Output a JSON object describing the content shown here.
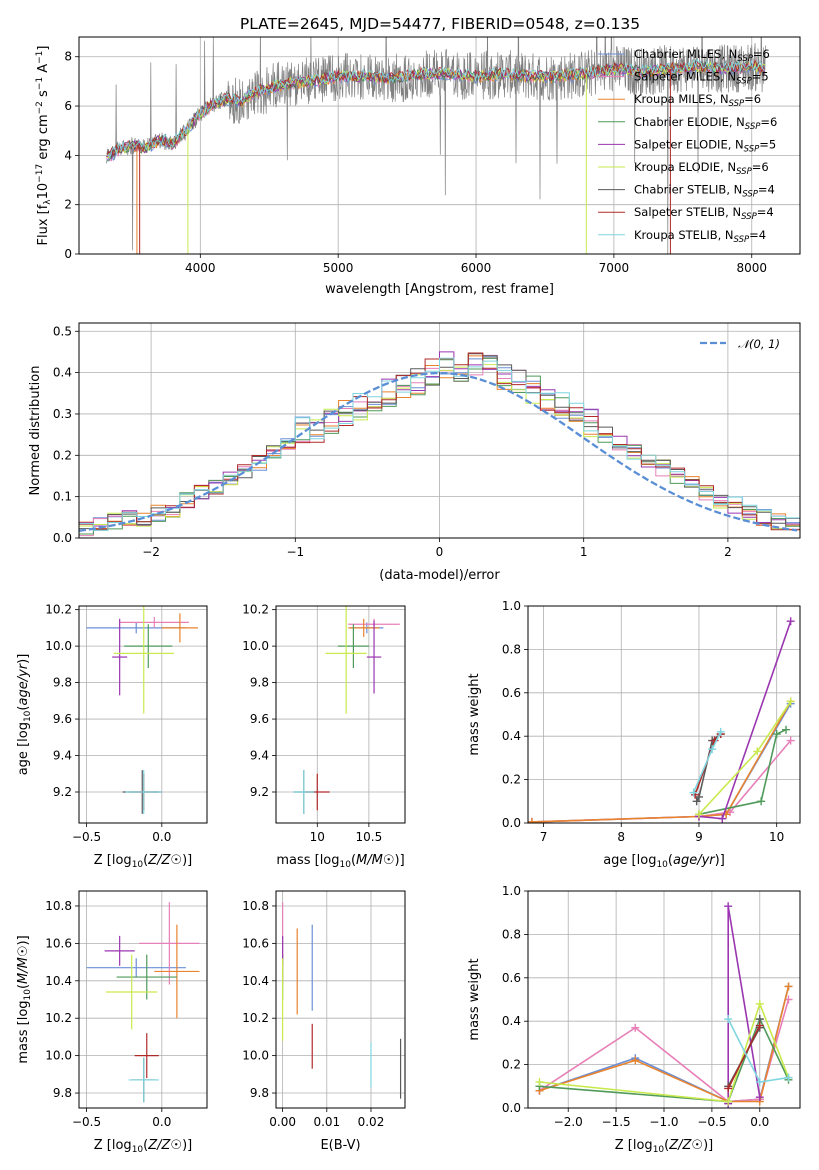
{
  "figure": {
    "title": "PLATE=2645, MJD=54477, FIBERID=0548, z=0.135"
  },
  "palette": {
    "Chabrier MILES": "#6b8fd6",
    "Salpeter MILES": "#e77fb8",
    "Kroupa MILES": "#e8832e",
    "Chabrier ELODIE": "#4f9a5a",
    "Salpeter ELODIE": "#9a36b0",
    "Kroupa ELODIE": "#c9ea4e",
    "Chabrier STELIB": "#5a5a5a",
    "Salpeter STELIB": "#b02a2a",
    "Kroupa STELIB": "#7fd6e0",
    "observed": "#808080",
    "gauss": "#5a8fd6",
    "grid": "#b0b0b0"
  },
  "chart_data": [
    {
      "id": "spectrum",
      "type": "line",
      "title": "PLATE=2645, MJD=54477, FIBERID=0548, z=0.135",
      "xlabel": "wavelength [Angstrom, rest frame]",
      "ylabel": "Flux [f_λ 10^-17 erg cm^-2 s^-1 A^-1]",
      "xlim": [
        3120,
        8350
      ],
      "ylim": [
        0,
        8.8
      ],
      "xticks": [
        4000,
        5000,
        6000,
        7000,
        8000
      ],
      "yticks": [
        0,
        2,
        4,
        6,
        8
      ],
      "legend_position": "upper-right",
      "legend": [
        {
          "name": "Chabrier MILES",
          "label": "Chabrier MILES, N",
          "sub": "SSP",
          "tail": "=6"
        },
        {
          "name": "Salpeter MILES",
          "label": "Salpeter MILES, N",
          "sub": "SSP",
          "tail": "=5"
        },
        {
          "name": "Kroupa MILES",
          "label": "Kroupa MILES, N",
          "sub": "SSP",
          "tail": "=6"
        },
        {
          "name": "Chabrier ELODIE",
          "label": "Chabrier ELODIE, N",
          "sub": "SSP",
          "tail": "=6"
        },
        {
          "name": "Salpeter ELODIE",
          "label": "Salpeter ELODIE, N",
          "sub": "SSP",
          "tail": "=5"
        },
        {
          "name": "Kroupa ELODIE",
          "label": "Kroupa ELODIE, N",
          "sub": "SSP",
          "tail": "=6"
        },
        {
          "name": "Chabrier STELIB",
          "label": "Chabrier STELIB, N",
          "sub": "SSP",
          "tail": "=4"
        },
        {
          "name": "Salpeter STELIB",
          "label": "Salpeter STELIB, N",
          "sub": "SSP",
          "tail": "=4"
        },
        {
          "name": "Kroupa STELIB",
          "label": "Kroupa STELIB, N",
          "sub": "SSP",
          "tail": "=4"
        }
      ],
      "continuum": [
        [
          3320,
          3.9
        ],
        [
          3400,
          4.2
        ],
        [
          3500,
          4.4
        ],
        [
          3600,
          4.3
        ],
        [
          3700,
          4.6
        ],
        [
          3800,
          4.5
        ],
        [
          3900,
          5.0
        ],
        [
          4000,
          5.7
        ],
        [
          4100,
          6.1
        ],
        [
          4200,
          6.3
        ],
        [
          4300,
          6.2
        ],
        [
          4400,
          6.6
        ],
        [
          4500,
          6.7
        ],
        [
          4600,
          6.9
        ],
        [
          4800,
          7.0
        ],
        [
          5000,
          7.2
        ],
        [
          5200,
          7.2
        ],
        [
          5400,
          7.1
        ],
        [
          5600,
          7.3
        ],
        [
          5800,
          7.3
        ],
        [
          6000,
          7.2
        ],
        [
          6200,
          7.3
        ],
        [
          6400,
          7.2
        ],
        [
          6600,
          7.2
        ],
        [
          6800,
          7.3
        ],
        [
          7000,
          7.5
        ],
        [
          7200,
          7.4
        ],
        [
          7400,
          7.5
        ],
        [
          7600,
          7.6
        ],
        [
          7800,
          7.5
        ],
        [
          8000,
          7.6
        ],
        [
          8100,
          7.5
        ]
      ],
      "model_dropouts": [
        {
          "name": "Salpeter STELIB",
          "wavelength": 3560
        },
        {
          "name": "Kroupa MILES",
          "wavelength": 3540
        },
        {
          "name": "Kroupa ELODIE",
          "wavelength": 3910
        },
        {
          "name": "Kroupa ELODIE",
          "wavelength": 6800
        },
        {
          "name": "Salpeter STELIB",
          "wavelength": 7410
        }
      ]
    },
    {
      "id": "residuals",
      "type": "histogram",
      "xlabel": "(data-model)/error",
      "ylabel": "Normed distribution",
      "xlim": [
        -2.5,
        2.5
      ],
      "ylim": [
        0,
        0.52
      ],
      "xticks": [
        -2,
        -1,
        0,
        1,
        2
      ],
      "yticks": [
        0.0,
        0.1,
        0.2,
        0.3,
        0.4,
        0.5
      ],
      "legend_position": "upper-right",
      "legend": [
        {
          "name": "gauss",
          "label": "𝒩(0, 1)"
        }
      ],
      "bins": [
        -2.5,
        -2.4,
        -2.3,
        -2.2,
        -2.1,
        -2.0,
        -1.9,
        -1.8,
        -1.7,
        -1.6,
        -1.5,
        -1.4,
        -1.3,
        -1.2,
        -1.1,
        -1.0,
        -0.9,
        -0.8,
        -0.7,
        -0.6,
        -0.5,
        -0.4,
        -0.3,
        -0.2,
        -0.1,
        0.0,
        0.1,
        0.2,
        0.3,
        0.4,
        0.5,
        0.6,
        0.7,
        0.8,
        0.9,
        1.0,
        1.1,
        1.2,
        1.3,
        1.4,
        1.5,
        1.6,
        1.7,
        1.8,
        1.9,
        2.0,
        2.1,
        2.2,
        2.3,
        2.4,
        2.5
      ],
      "hist_center": [
        0.02,
        0.03,
        0.04,
        0.05,
        0.04,
        0.06,
        0.07,
        0.09,
        0.11,
        0.12,
        0.14,
        0.16,
        0.18,
        0.21,
        0.23,
        0.26,
        0.26,
        0.28,
        0.3,
        0.32,
        0.33,
        0.35,
        0.36,
        0.38,
        0.4,
        0.42,
        0.41,
        0.42,
        0.41,
        0.39,
        0.38,
        0.36,
        0.34,
        0.32,
        0.3,
        0.28,
        0.25,
        0.23,
        0.21,
        0.19,
        0.17,
        0.15,
        0.13,
        0.11,
        0.09,
        0.08,
        0.06,
        0.05,
        0.04,
        0.03
      ]
    },
    {
      "id": "age-vs-Z",
      "type": "errorbar",
      "xlabel": "Z [log10(Z/Z☉)]",
      "ylabel": "age [log10(age/yr)]",
      "xlim": [
        -0.55,
        0.3
      ],
      "ylim": [
        9.03,
        10.22
      ],
      "xticks": [
        -0.5,
        -0.0
      ],
      "xticklabels": [
        "−0.5",
        "0.0"
      ],
      "yticks": [
        9.2,
        9.4,
        9.6,
        9.8,
        10.0,
        10.2
      ],
      "points": [
        {
          "name": "Chabrier MILES",
          "x": -0.17,
          "xerr": 0.33,
          "y": 10.1,
          "yerr": 0.03
        },
        {
          "name": "Salpeter MILES",
          "x": -0.05,
          "xerr": 0.23,
          "y": 10.13,
          "yerr": 0.03
        },
        {
          "name": "Kroupa MILES",
          "x": 0.12,
          "xerr": 0.12,
          "y": 10.1,
          "yerr": 0.08
        },
        {
          "name": "Chabrier ELODIE",
          "x": -0.09,
          "xerr": 0.16,
          "y": 10.0,
          "yerr": 0.12
        },
        {
          "name": "Salpeter ELODIE",
          "x": -0.28,
          "xerr": 0.05,
          "y": 9.94,
          "yerr": 0.21
        },
        {
          "name": "Kroupa ELODIE",
          "x": -0.12,
          "xerr": 0.2,
          "y": 9.96,
          "yerr": 0.33
        },
        {
          "name": "Chabrier STELIB",
          "x": -0.13,
          "xerr": 0.13,
          "y": 9.2,
          "yerr": 0.12
        },
        {
          "name": "Salpeter STELIB",
          "x": -0.12,
          "xerr": 0.1,
          "y": 9.2,
          "yerr": 0.1
        },
        {
          "name": "Kroupa STELIB",
          "x": -0.12,
          "xerr": 0.12,
          "y": 9.2,
          "yerr": 0.12
        }
      ]
    },
    {
      "id": "age-vs-mass",
      "type": "errorbar",
      "xlabel": "mass [log10(M/M☉)]",
      "ylabel": "",
      "xlim": [
        9.6,
        10.85
      ],
      "ylim": [
        9.03,
        10.22
      ],
      "xticks": [
        10.0,
        10.5
      ],
      "yticks": [
        9.2,
        9.4,
        9.6,
        9.8,
        10.0,
        10.2
      ],
      "points": [
        {
          "name": "Chabrier MILES",
          "x": 10.48,
          "xerr": 0.16,
          "y": 10.1,
          "yerr": 0.03
        },
        {
          "name": "Salpeter MILES",
          "x": 10.55,
          "xerr": 0.25,
          "y": 10.12,
          "yerr": 0.03
        },
        {
          "name": "Kroupa MILES",
          "x": 10.45,
          "xerr": 0.15,
          "y": 10.1,
          "yerr": 0.05
        },
        {
          "name": "Chabrier ELODIE",
          "x": 10.35,
          "xerr": 0.15,
          "y": 10.0,
          "yerr": 0.12
        },
        {
          "name": "Salpeter ELODIE",
          "x": 10.55,
          "xerr": 0.07,
          "y": 9.94,
          "yerr": 0.2
        },
        {
          "name": "Kroupa ELODIE",
          "x": 10.28,
          "xerr": 0.2,
          "y": 9.96,
          "yerr": 0.33
        },
        {
          "name": "Chabrier STELIB",
          "x": 9.87,
          "xerr": 0.1,
          "y": 9.2,
          "yerr": 0.12
        },
        {
          "name": "Salpeter STELIB",
          "x": 10.0,
          "xerr": 0.12,
          "y": 9.2,
          "yerr": 0.1
        },
        {
          "name": "Kroupa STELIB",
          "x": 9.87,
          "xerr": 0.1,
          "y": 9.2,
          "yerr": 0.12
        }
      ]
    },
    {
      "id": "massweight-vs-age",
      "type": "line",
      "xlabel": "age [log10(age/yr)]",
      "ylabel": "mass weight",
      "xlim": [
        6.8,
        10.3
      ],
      "ylim": [
        0,
        1.0
      ],
      "xticks": [
        7,
        8,
        9,
        10
      ],
      "yticks": [
        0.0,
        0.2,
        0.4,
        0.6,
        0.8,
        1.0
      ],
      "series": [
        {
          "name": "Chabrier MILES",
          "x": [
            6.85,
            9.0,
            9.35,
            10.18
          ],
          "y": [
            0.005,
            0.03,
            0.04,
            0.55
          ]
        },
        {
          "name": "Salpeter MILES",
          "x": [
            6.85,
            9.0,
            9.4,
            10.18
          ],
          "y": [
            0.005,
            0.03,
            0.05,
            0.38
          ]
        },
        {
          "name": "Kroupa MILES",
          "x": [
            6.85,
            9.0,
            9.35,
            10.18
          ],
          "y": [
            0.005,
            0.03,
            0.04,
            0.56
          ]
        },
        {
          "name": "Chabrier ELODIE",
          "x": [
            9.0,
            9.8,
            10.0,
            10.12
          ],
          "y": [
            0.04,
            0.1,
            0.41,
            0.43
          ]
        },
        {
          "name": "Salpeter ELODIE",
          "x": [
            9.0,
            9.3,
            10.18
          ],
          "y": [
            0.03,
            0.02,
            0.93
          ]
        },
        {
          "name": "Kroupa ELODIE",
          "x": [
            9.0,
            9.75,
            10.18
          ],
          "y": [
            0.04,
            0.33,
            0.56
          ]
        },
        {
          "name": "Chabrier STELIB",
          "x": [
            8.97,
            9.0,
            9.17,
            9.28
          ],
          "y": [
            0.1,
            0.12,
            0.38,
            0.41
          ]
        },
        {
          "name": "Salpeter STELIB",
          "x": [
            8.95,
            9.2,
            9.28
          ],
          "y": [
            0.13,
            0.38,
            0.41
          ]
        },
        {
          "name": "Kroupa STELIB",
          "x": [
            8.93,
            9.17,
            9.28
          ],
          "y": [
            0.14,
            0.34,
            0.42
          ]
        }
      ]
    },
    {
      "id": "mass-vs-Z",
      "type": "errorbar",
      "xlabel": "Z [log10(Z/Z☉)]",
      "ylabel": "mass [log10(M/M☉)]",
      "xlim": [
        -0.55,
        0.3
      ],
      "ylim": [
        9.72,
        10.88
      ],
      "xticks": [
        -0.5,
        -0.0
      ],
      "xticklabels": [
        "−0.5",
        "0.0"
      ],
      "yticks": [
        9.8,
        10.0,
        10.2,
        10.4,
        10.6,
        10.8
      ],
      "points": [
        {
          "name": "Chabrier MILES",
          "x": -0.17,
          "xerr": 0.33,
          "y": 10.47,
          "yerr": 0.05
        },
        {
          "name": "Salpeter MILES",
          "x": 0.05,
          "xerr": 0.2,
          "y": 10.6,
          "yerr": 0.22
        },
        {
          "name": "Kroupa MILES",
          "x": 0.1,
          "xerr": 0.15,
          "y": 10.45,
          "yerr": 0.25
        },
        {
          "name": "Chabrier ELODIE",
          "x": -0.1,
          "xerr": 0.2,
          "y": 10.42,
          "yerr": 0.12
        },
        {
          "name": "Salpeter ELODIE",
          "x": -0.28,
          "xerr": 0.1,
          "y": 10.56,
          "yerr": 0.08
        },
        {
          "name": "Kroupa ELODIE",
          "x": -0.2,
          "xerr": 0.17,
          "y": 10.34,
          "yerr": 0.2
        },
        {
          "name": "Chabrier STELIB",
          "x": -0.12,
          "xerr": 0.08,
          "y": 9.87,
          "yerr": 0.12
        },
        {
          "name": "Salpeter STELIB",
          "x": -0.1,
          "xerr": 0.08,
          "y": 10.0,
          "yerr": 0.12
        },
        {
          "name": "Kroupa STELIB",
          "x": -0.12,
          "xerr": 0.1,
          "y": 9.87,
          "yerr": 0.12
        }
      ]
    },
    {
      "id": "mass-vs-ebv",
      "type": "errorbar",
      "xlabel": "E(B-V)",
      "ylabel": "",
      "xlim": [
        -0.0015,
        0.0277
      ],
      "ylim": [
        9.72,
        10.88
      ],
      "xticks": [
        0.0,
        0.01,
        0.02
      ],
      "xticklabels": [
        "0.00",
        "0.01",
        "0.02"
      ],
      "yticks": [
        9.8,
        10.0,
        10.2,
        10.4,
        10.6,
        10.8
      ],
      "points": [
        {
          "name": "Chabrier MILES",
          "x": 0.0067,
          "y": 10.47,
          "yerr": 0.23
        },
        {
          "name": "Salpeter MILES",
          "x": 0.0,
          "y": 10.6,
          "yerr": 0.22
        },
        {
          "name": "Kroupa MILES",
          "x": 0.0033,
          "y": 10.45,
          "yerr": 0.23
        },
        {
          "name": "Chabrier ELODIE",
          "x": 0.0,
          "y": 10.42,
          "yerr": 0.12
        },
        {
          "name": "Salpeter ELODIE",
          "x": 0.0,
          "y": 10.56,
          "yerr": 0.08
        },
        {
          "name": "Kroupa ELODIE",
          "x": 0.0,
          "y": 10.3,
          "yerr": 0.22
        },
        {
          "name": "Chabrier STELIB",
          "x": 0.0267,
          "y": 9.93,
          "yerr": 0.16
        },
        {
          "name": "Salpeter STELIB",
          "x": 0.0067,
          "y": 10.05,
          "yerr": 0.12
        },
        {
          "name": "Kroupa STELIB",
          "x": 0.02,
          "y": 9.95,
          "yerr": 0.12
        }
      ]
    },
    {
      "id": "massweight-vs-Z",
      "type": "line",
      "xlabel": "Z [log10(Z/Z☉)]",
      "ylabel": "mass weight",
      "xlim": [
        -2.42,
        0.42
      ],
      "ylim": [
        0,
        1.0
      ],
      "xticks": [
        -2.0,
        -1.5,
        -1.0,
        -0.5,
        0.0
      ],
      "xticklabels": [
        "−2.0",
        "−1.5",
        "−1.0",
        "−0.5",
        "0.0"
      ],
      "yticks": [
        0.0,
        0.2,
        0.4,
        0.6,
        0.8,
        1.0
      ],
      "series": [
        {
          "name": "Chabrier MILES",
          "x": [
            -2.3,
            -1.3,
            -0.33,
            0.0,
            0.3
          ],
          "y": [
            0.08,
            0.23,
            0.03,
            0.04,
            0.56
          ]
        },
        {
          "name": "Salpeter MILES",
          "x": [
            -2.3,
            -1.3,
            -0.33,
            0.0,
            0.3
          ],
          "y": [
            0.08,
            0.37,
            0.03,
            0.04,
            0.5
          ]
        },
        {
          "name": "Kroupa MILES",
          "x": [
            -2.3,
            -1.3,
            -0.33,
            0.0,
            0.3
          ],
          "y": [
            0.08,
            0.22,
            0.03,
            0.03,
            0.56
          ]
        },
        {
          "name": "Chabrier ELODIE",
          "x": [
            -2.3,
            -0.33,
            0.0,
            0.3
          ],
          "y": [
            0.1,
            0.03,
            0.41,
            0.13
          ]
        },
        {
          "name": "Salpeter ELODIE",
          "x": [
            -0.33,
            -0.33,
            0.0
          ],
          "y": [
            0.02,
            0.93,
            0.05
          ]
        },
        {
          "name": "Kroupa ELODIE",
          "x": [
            -2.3,
            -0.33,
            0.0,
            0.3
          ],
          "y": [
            0.12,
            0.03,
            0.48,
            0.14
          ]
        },
        {
          "name": "Chabrier STELIB",
          "x": [
            -0.33,
            0.0,
            0.0
          ],
          "y": [
            0.1,
            0.37,
            0.41
          ]
        },
        {
          "name": "Salpeter STELIB",
          "x": [
            -0.33,
            0.0
          ],
          "y": [
            0.09,
            0.38
          ]
        },
        {
          "name": "Kroupa STELIB",
          "x": [
            -0.33,
            0.0,
            0.3
          ],
          "y": [
            0.41,
            0.12,
            0.14
          ]
        }
      ]
    }
  ]
}
